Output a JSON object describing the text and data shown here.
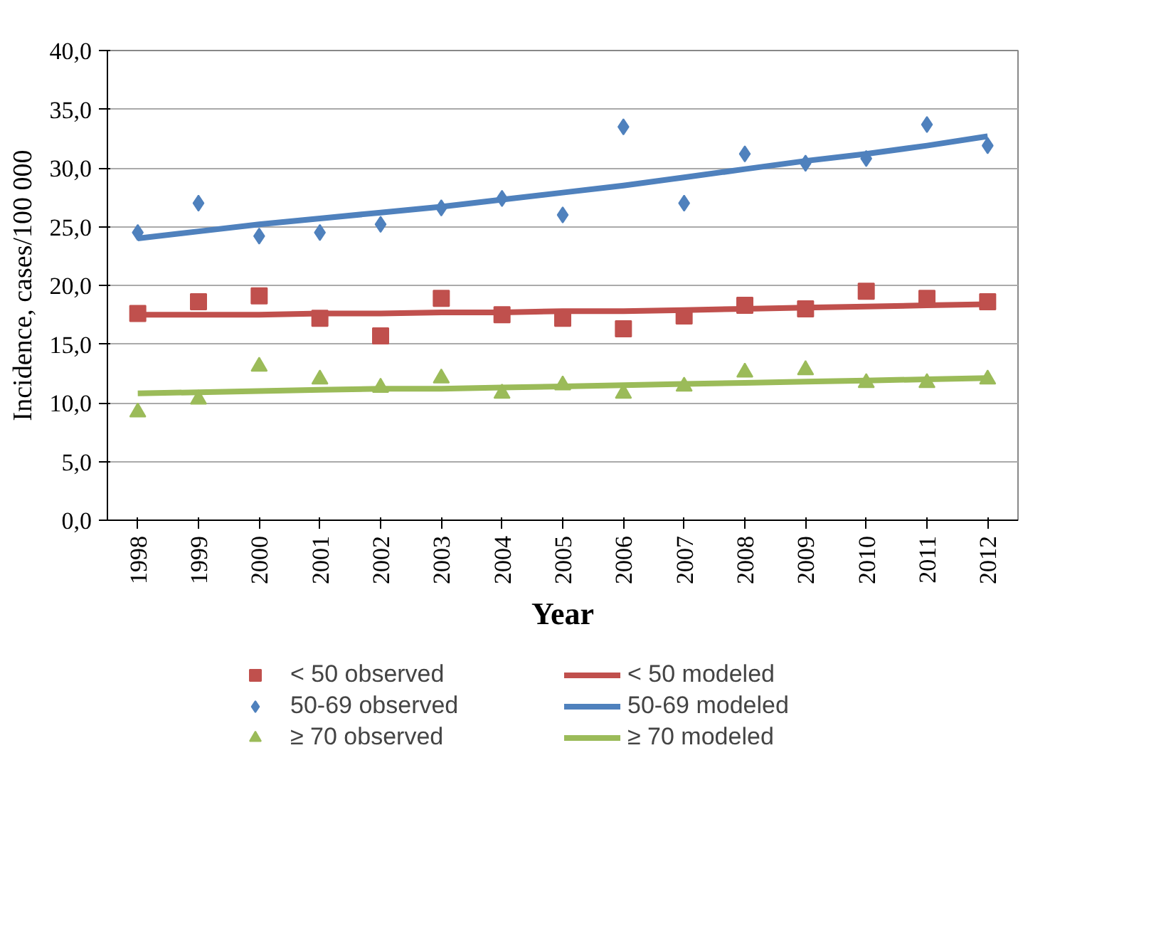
{
  "chart_data": {
    "type": "scatter",
    "xlabel": "Year",
    "ylabel": "Incidence, cases/100 000",
    "categories": [
      "1998",
      "1999",
      "2000",
      "2001",
      "2002",
      "2003",
      "2004",
      "2005",
      "2006",
      "2007",
      "2008",
      "2009",
      "2010",
      "2011",
      "2012"
    ],
    "ylim": [
      0,
      40
    ],
    "yticks": [
      {
        "value": 0,
        "label": "0,0"
      },
      {
        "value": 5,
        "label": "5,0"
      },
      {
        "value": 10,
        "label": "10,0"
      },
      {
        "value": 15,
        "label": "15,0"
      },
      {
        "value": 20,
        "label": "20,0"
      },
      {
        "value": 25,
        "label": "25,0"
      },
      {
        "value": 30,
        "label": "30,0"
      },
      {
        "value": 35,
        "label": "35,0"
      },
      {
        "value": 40,
        "label": "40,0"
      }
    ],
    "grid": "y",
    "legend": "bottom",
    "series": [
      {
        "name": "< 50 observed",
        "type": "scatter",
        "marker": "square",
        "color": "#c0504d",
        "values": [
          17.6,
          18.6,
          19.1,
          17.2,
          15.7,
          18.9,
          17.5,
          17.2,
          16.3,
          17.4,
          18.3,
          18.0,
          19.5,
          18.9,
          18.6
        ]
      },
      {
        "name": "< 50 modeled",
        "type": "line",
        "color": "#c0504d",
        "values": [
          17.5,
          17.5,
          17.5,
          17.6,
          17.6,
          17.7,
          17.7,
          17.8,
          17.8,
          17.9,
          18.0,
          18.1,
          18.2,
          18.3,
          18.4
        ]
      },
      {
        "name": "50-69 observed",
        "type": "scatter",
        "marker": "diamond",
        "color": "#4f81bd",
        "values": [
          24.5,
          27.0,
          24.2,
          24.5,
          25.2,
          26.6,
          27.4,
          26.0,
          33.5,
          27.0,
          31.2,
          30.4,
          30.8,
          33.7,
          31.9
        ]
      },
      {
        "name": "50-69 modeled",
        "type": "line",
        "color": "#4f81bd",
        "values": [
          24.0,
          24.6,
          25.2,
          25.7,
          26.2,
          26.7,
          27.3,
          27.9,
          28.5,
          29.2,
          29.9,
          30.6,
          31.2,
          31.9,
          32.7
        ]
      },
      {
        "name": "≥ 70 observed",
        "type": "scatter",
        "marker": "triangle",
        "color": "#9bbb59",
        "values": [
          9.2,
          10.3,
          13.1,
          12.0,
          11.3,
          12.1,
          10.8,
          11.5,
          10.8,
          11.4,
          12.6,
          12.8,
          11.7,
          11.7,
          12.0
        ]
      },
      {
        "name": "≥ 70 modeled",
        "type": "line",
        "color": "#9bbb59",
        "values": [
          10.8,
          10.9,
          11.0,
          11.1,
          11.2,
          11.2,
          11.3,
          11.4,
          11.5,
          11.6,
          11.7,
          11.8,
          11.9,
          12.0,
          12.1
        ]
      }
    ]
  }
}
